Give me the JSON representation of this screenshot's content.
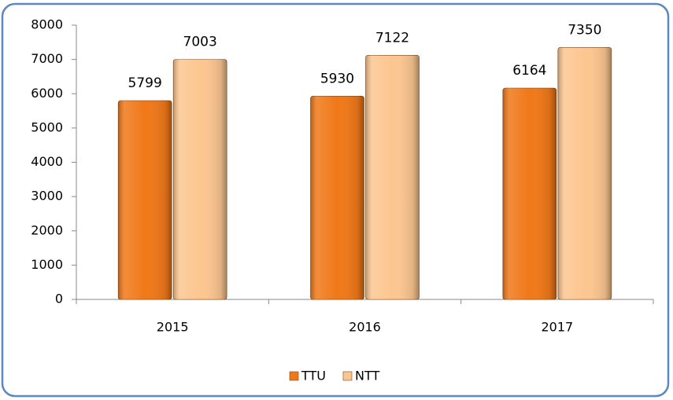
{
  "chart_data": {
    "type": "bar",
    "categories": [
      "2015",
      "2016",
      "2017"
    ],
    "series": [
      {
        "name": "TTU",
        "color": "#f07818",
        "values": [
          5799,
          5930,
          6164
        ]
      },
      {
        "name": "NTT",
        "color": "#fcc690",
        "values": [
          7003,
          7122,
          7350
        ]
      }
    ],
    "ylim": [
      0,
      8000
    ],
    "yticks": [
      0,
      1000,
      2000,
      3000,
      4000,
      5000,
      6000,
      7000,
      8000
    ],
    "grid": false,
    "legend": "bottom"
  }
}
